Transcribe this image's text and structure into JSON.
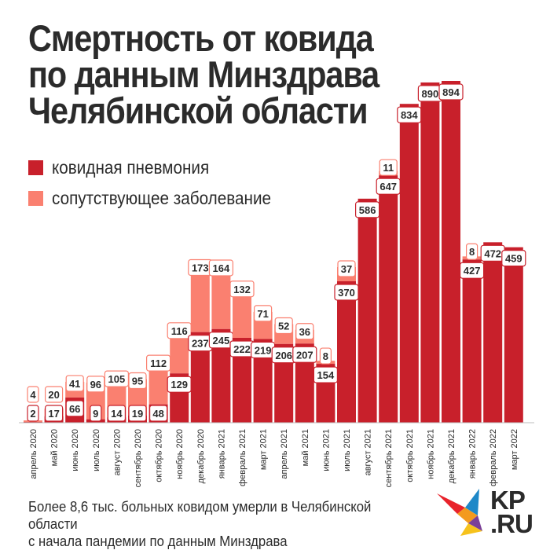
{
  "title_lines": [
    "Смертность от ковида",
    "по данным Минздрава",
    "Челябинской области"
  ],
  "legend": [
    {
      "label": "ковидная пневмония",
      "color": "#c8202b"
    },
    {
      "label": "сопутствующее заболевание",
      "color": "#fa8070"
    }
  ],
  "footer": {
    "line1": "Более 8,6 тыс. больных ковидом умерли в Челябинской области",
    "line2": "с начала пандемии по данным Минздрава"
  },
  "logo": {
    "line1": "KP",
    "line2": ".RU"
  },
  "chart_data": {
    "type": "bar",
    "stacked": true,
    "categories": [
      "апрель 2020",
      "май 2020",
      "июнь 2020",
      "июль 2020",
      "август 2020",
      "сентябрь 2020",
      "октябрь 2020",
      "ноябрь 2020",
      "декабрь 2020",
      "январь 2021",
      "февраль 2021",
      "март 2021",
      "апрель 2021",
      "май 2021",
      "июнь 2021",
      "июль 2021",
      "август 2021",
      "сентябрь 2021",
      "октябрь 2021",
      "ноябрь 2021",
      "декабрь 2021",
      "январь 2022",
      "февраль 2022",
      "март 2022"
    ],
    "series": [
      {
        "name": "ковидная пневмония",
        "color": "#c8202b",
        "values": [
          2,
          17,
          66,
          9,
          14,
          19,
          48,
          129,
          237,
          245,
          222,
          219,
          206,
          207,
          154,
          370,
          586,
          647,
          834,
          890,
          894,
          427,
          472,
          459
        ]
      },
      {
        "name": "сопутствующее заболевание",
        "color": "#fa8070",
        "values": [
          4,
          20,
          41,
          96,
          105,
          95,
          112,
          116,
          173,
          164,
          132,
          71,
          52,
          36,
          8,
          37,
          null,
          11,
          null,
          null,
          null,
          8,
          null,
          null
        ]
      }
    ],
    "ylim": [
      0,
      894
    ],
    "grid": false
  }
}
